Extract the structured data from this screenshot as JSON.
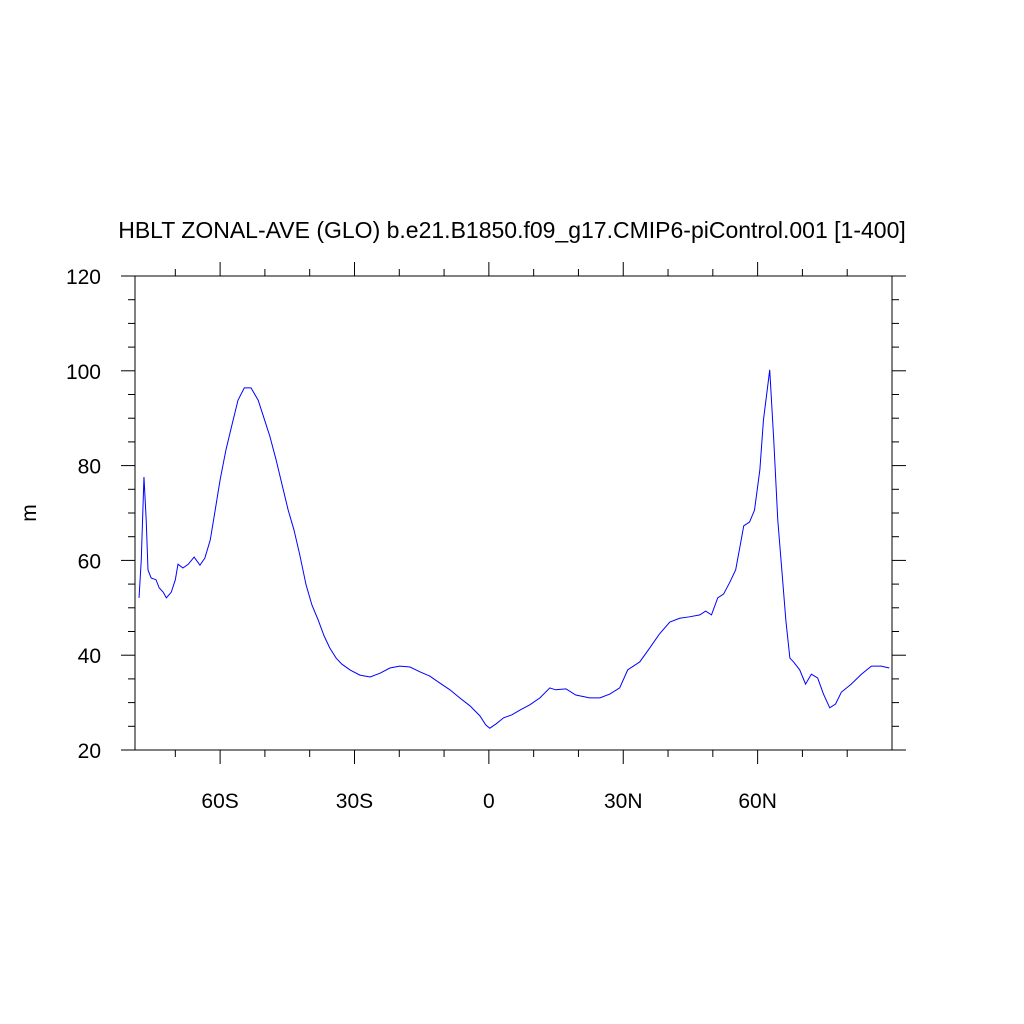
{
  "chart_data": {
    "type": "line",
    "title": "HBLT ZONAL-AVE (GLO) b.e21.B1850.f09_g17.CMIP6-piControl.001 [1-400]",
    "y_label": "m",
    "xlim": [
      -79,
      90
    ],
    "ylim": [
      20,
      120
    ],
    "xticks": [
      {
        "value": -60,
        "label": "60S"
      },
      {
        "value": -30,
        "label": "30S"
      },
      0,
      {
        "value": 30,
        "label": "30N"
      },
      {
        "value": 60,
        "label": "60N"
      }
    ],
    "yticks": [
      20,
      40,
      60,
      80,
      100,
      120
    ],
    "xminorticks": [
      -70,
      -50,
      -40,
      -20,
      -10,
      10,
      20,
      40,
      50,
      70,
      80
    ],
    "yminorticks": [
      25,
      30,
      35,
      45,
      50,
      55,
      65,
      70,
      75,
      85,
      90,
      95,
      105,
      110,
      115
    ],
    "grid": false,
    "series": [
      {
        "color": "#0000ff",
        "x": [
          -78.1,
          -77.6,
          -77.0,
          -76.5,
          -76.1,
          -75.4,
          -74.3,
          -73.6,
          -72.7,
          -72.0,
          -70.9,
          -70.0,
          -69.4,
          -68.3,
          -67.1,
          -65.8,
          -64.5,
          -63.4,
          -62.2,
          -61.1,
          -60.0,
          -58.7,
          -57.3,
          -56.0,
          -54.6,
          -53.1,
          -51.5,
          -50.2,
          -48.9,
          -47.5,
          -46.2,
          -44.8,
          -43.5,
          -42.2,
          -40.8,
          -39.5,
          -38.1,
          -36.8,
          -35.5,
          -34.1,
          -32.8,
          -31.0,
          -28.8,
          -26.5,
          -24.3,
          -22.1,
          -19.9,
          -17.6,
          -15.4,
          -13.2,
          -10.9,
          -8.7,
          -6.5,
          -4.2,
          -2.0,
          -0.7,
          0.2,
          1.6,
          3.3,
          5.1,
          6.9,
          9.1,
          11.4,
          13.6,
          14.9,
          17.2,
          19.4,
          22.5,
          24.8,
          27.0,
          29.2,
          31.0,
          33.7,
          35.9,
          38.1,
          40.4,
          42.6,
          44.8,
          47.1,
          48.4,
          49.7,
          51.1,
          52.4,
          53.8,
          55.1,
          56.0,
          56.9,
          58.2,
          59.3,
          60.5,
          61.3,
          62.2,
          62.7,
          63.6,
          64.5,
          65.4,
          66.3,
          67.2,
          68.0,
          69.4,
          70.7,
          72.0,
          73.4,
          74.7,
          76.1,
          77.4,
          78.7,
          80.9,
          83.2,
          85.4,
          87.6,
          89.4
        ],
        "values": [
          52.1,
          60.1,
          77.6,
          68.5,
          58.0,
          56.3,
          55.9,
          54.2,
          53.3,
          52.1,
          53.3,
          55.9,
          59.2,
          58.4,
          59.2,
          60.7,
          59.0,
          60.5,
          64.3,
          70.6,
          77.0,
          83.3,
          88.8,
          93.8,
          96.4,
          96.4,
          93.8,
          90.0,
          86.2,
          81.2,
          76.1,
          70.6,
          66.4,
          61.1,
          54.8,
          50.6,
          47.4,
          44.1,
          41.5,
          39.4,
          38.1,
          36.9,
          35.8,
          35.4,
          36.2,
          37.3,
          37.7,
          37.5,
          36.5,
          35.6,
          34.1,
          32.7,
          31.0,
          29.3,
          27.2,
          25.3,
          24.6,
          25.5,
          26.8,
          27.4,
          28.4,
          29.5,
          31.0,
          33.1,
          32.7,
          32.9,
          31.6,
          31.0,
          31.0,
          31.8,
          33.1,
          36.9,
          38.6,
          41.5,
          44.5,
          47.0,
          47.8,
          48.1,
          48.5,
          49.3,
          48.5,
          52.1,
          52.9,
          55.4,
          58.0,
          62.6,
          67.3,
          68.1,
          70.6,
          79.1,
          89.6,
          96.4,
          100.2,
          85.4,
          68.5,
          58.0,
          47.4,
          39.4,
          38.6,
          36.9,
          33.9,
          36.0,
          35.2,
          31.8,
          28.9,
          29.7,
          32.2,
          33.9,
          36.0,
          37.7,
          37.7,
          37.3
        ]
      }
    ]
  }
}
